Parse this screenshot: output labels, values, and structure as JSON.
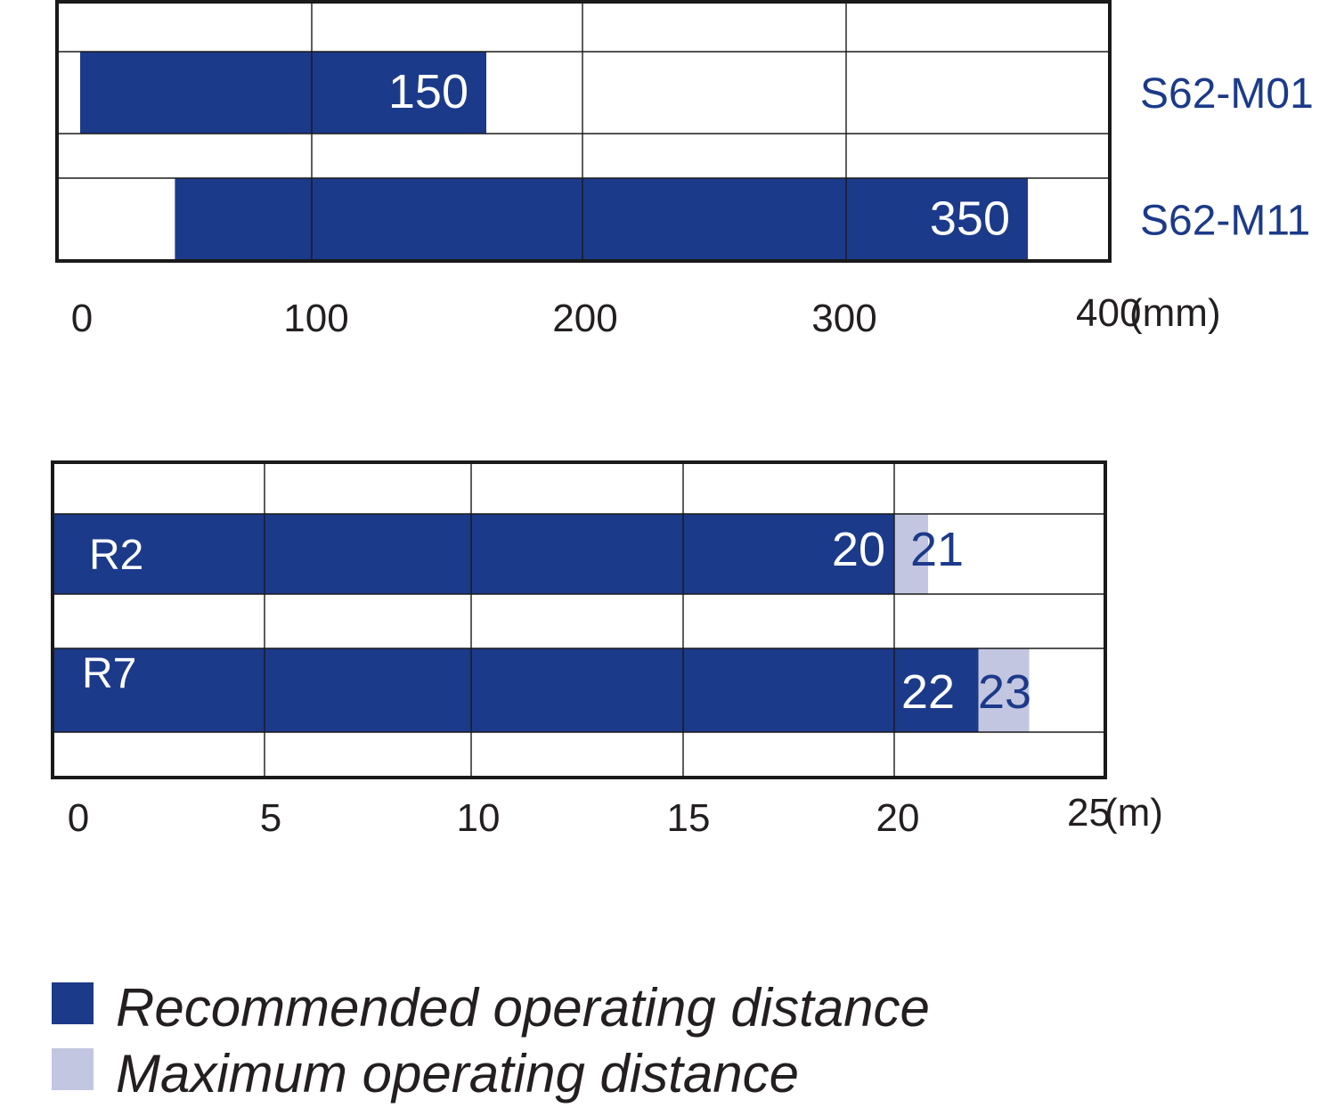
{
  "colors": {
    "recommended": "#1c3a8a",
    "maximum": "#c2c6e0",
    "grid": "#1a1a1a",
    "label_dark": "#1c3a8a",
    "text": "#231f20"
  },
  "chart_data": [
    {
      "type": "bar",
      "orientation": "horizontal",
      "title": "",
      "xlabel": "(mm)",
      "unit": "(mm)",
      "xlim": [
        0,
        400
      ],
      "ticks": [
        0,
        100,
        200,
        300,
        400
      ],
      "tick_labels": [
        "0",
        "100",
        "200",
        "300",
        "400"
      ],
      "tick_suffix": "(mm)",
      "series": [
        {
          "name": "Recommended operating distance",
          "key": "recommended"
        }
      ],
      "bars": [
        {
          "name": "S62-M01",
          "label_position": "right",
          "start": 0,
          "recommended": 150,
          "recommended_label": "150"
        },
        {
          "name": "S62-M11",
          "label_position": "right",
          "start": 35,
          "recommended": 350,
          "recommended_label": "350"
        }
      ]
    },
    {
      "type": "bar",
      "orientation": "horizontal",
      "title": "",
      "xlabel": "(m)",
      "unit": "(m)",
      "xlim": [
        0,
        25
      ],
      "ticks": [
        0,
        5,
        10,
        15,
        20,
        25
      ],
      "tick_labels": [
        "0",
        "5",
        "10",
        "15",
        "20",
        "25"
      ],
      "tick_suffix": "(m)",
      "series": [
        {
          "name": "Recommended operating distance",
          "key": "recommended"
        },
        {
          "name": "Maximum operating distance",
          "key": "maximum"
        }
      ],
      "bars": [
        {
          "name": "R2",
          "label_position": "inside-left",
          "start": 0,
          "recommended": 20,
          "recommended_label": "20",
          "maximum": 21,
          "maximum_label": "21"
        },
        {
          "name": "R7",
          "label_position": "inside-left",
          "start": 0,
          "recommended": 22,
          "recommended_label": "22",
          "maximum": 23,
          "maximum_label": "23"
        }
      ]
    }
  ],
  "legend": [
    {
      "key": "recommended",
      "label": "Recommended operating distance"
    },
    {
      "key": "maximum",
      "label": "Maximum operating distance"
    }
  ]
}
